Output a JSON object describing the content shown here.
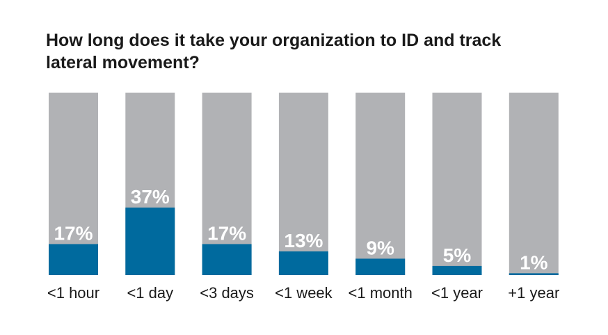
{
  "chart_data": {
    "type": "bar",
    "title": "How long does it take your organization to ID and track lateral movement?",
    "categories": [
      "<1 hour",
      "<1 day",
      "<3 days",
      "<1 week",
      "<1 month",
      "<1 year",
      "+1 year"
    ],
    "values": [
      17,
      37,
      17,
      13,
      9,
      5,
      1
    ],
    "value_labels": [
      "17%",
      "37%",
      "17%",
      "13%",
      "9%",
      "5%",
      "1%"
    ],
    "ylim": [
      0,
      100
    ],
    "xlabel": "",
    "ylabel": "",
    "grid": false,
    "colors": {
      "fill": "#006a9e",
      "track": "#b1b2b5",
      "label": "#ffffff"
    }
  }
}
